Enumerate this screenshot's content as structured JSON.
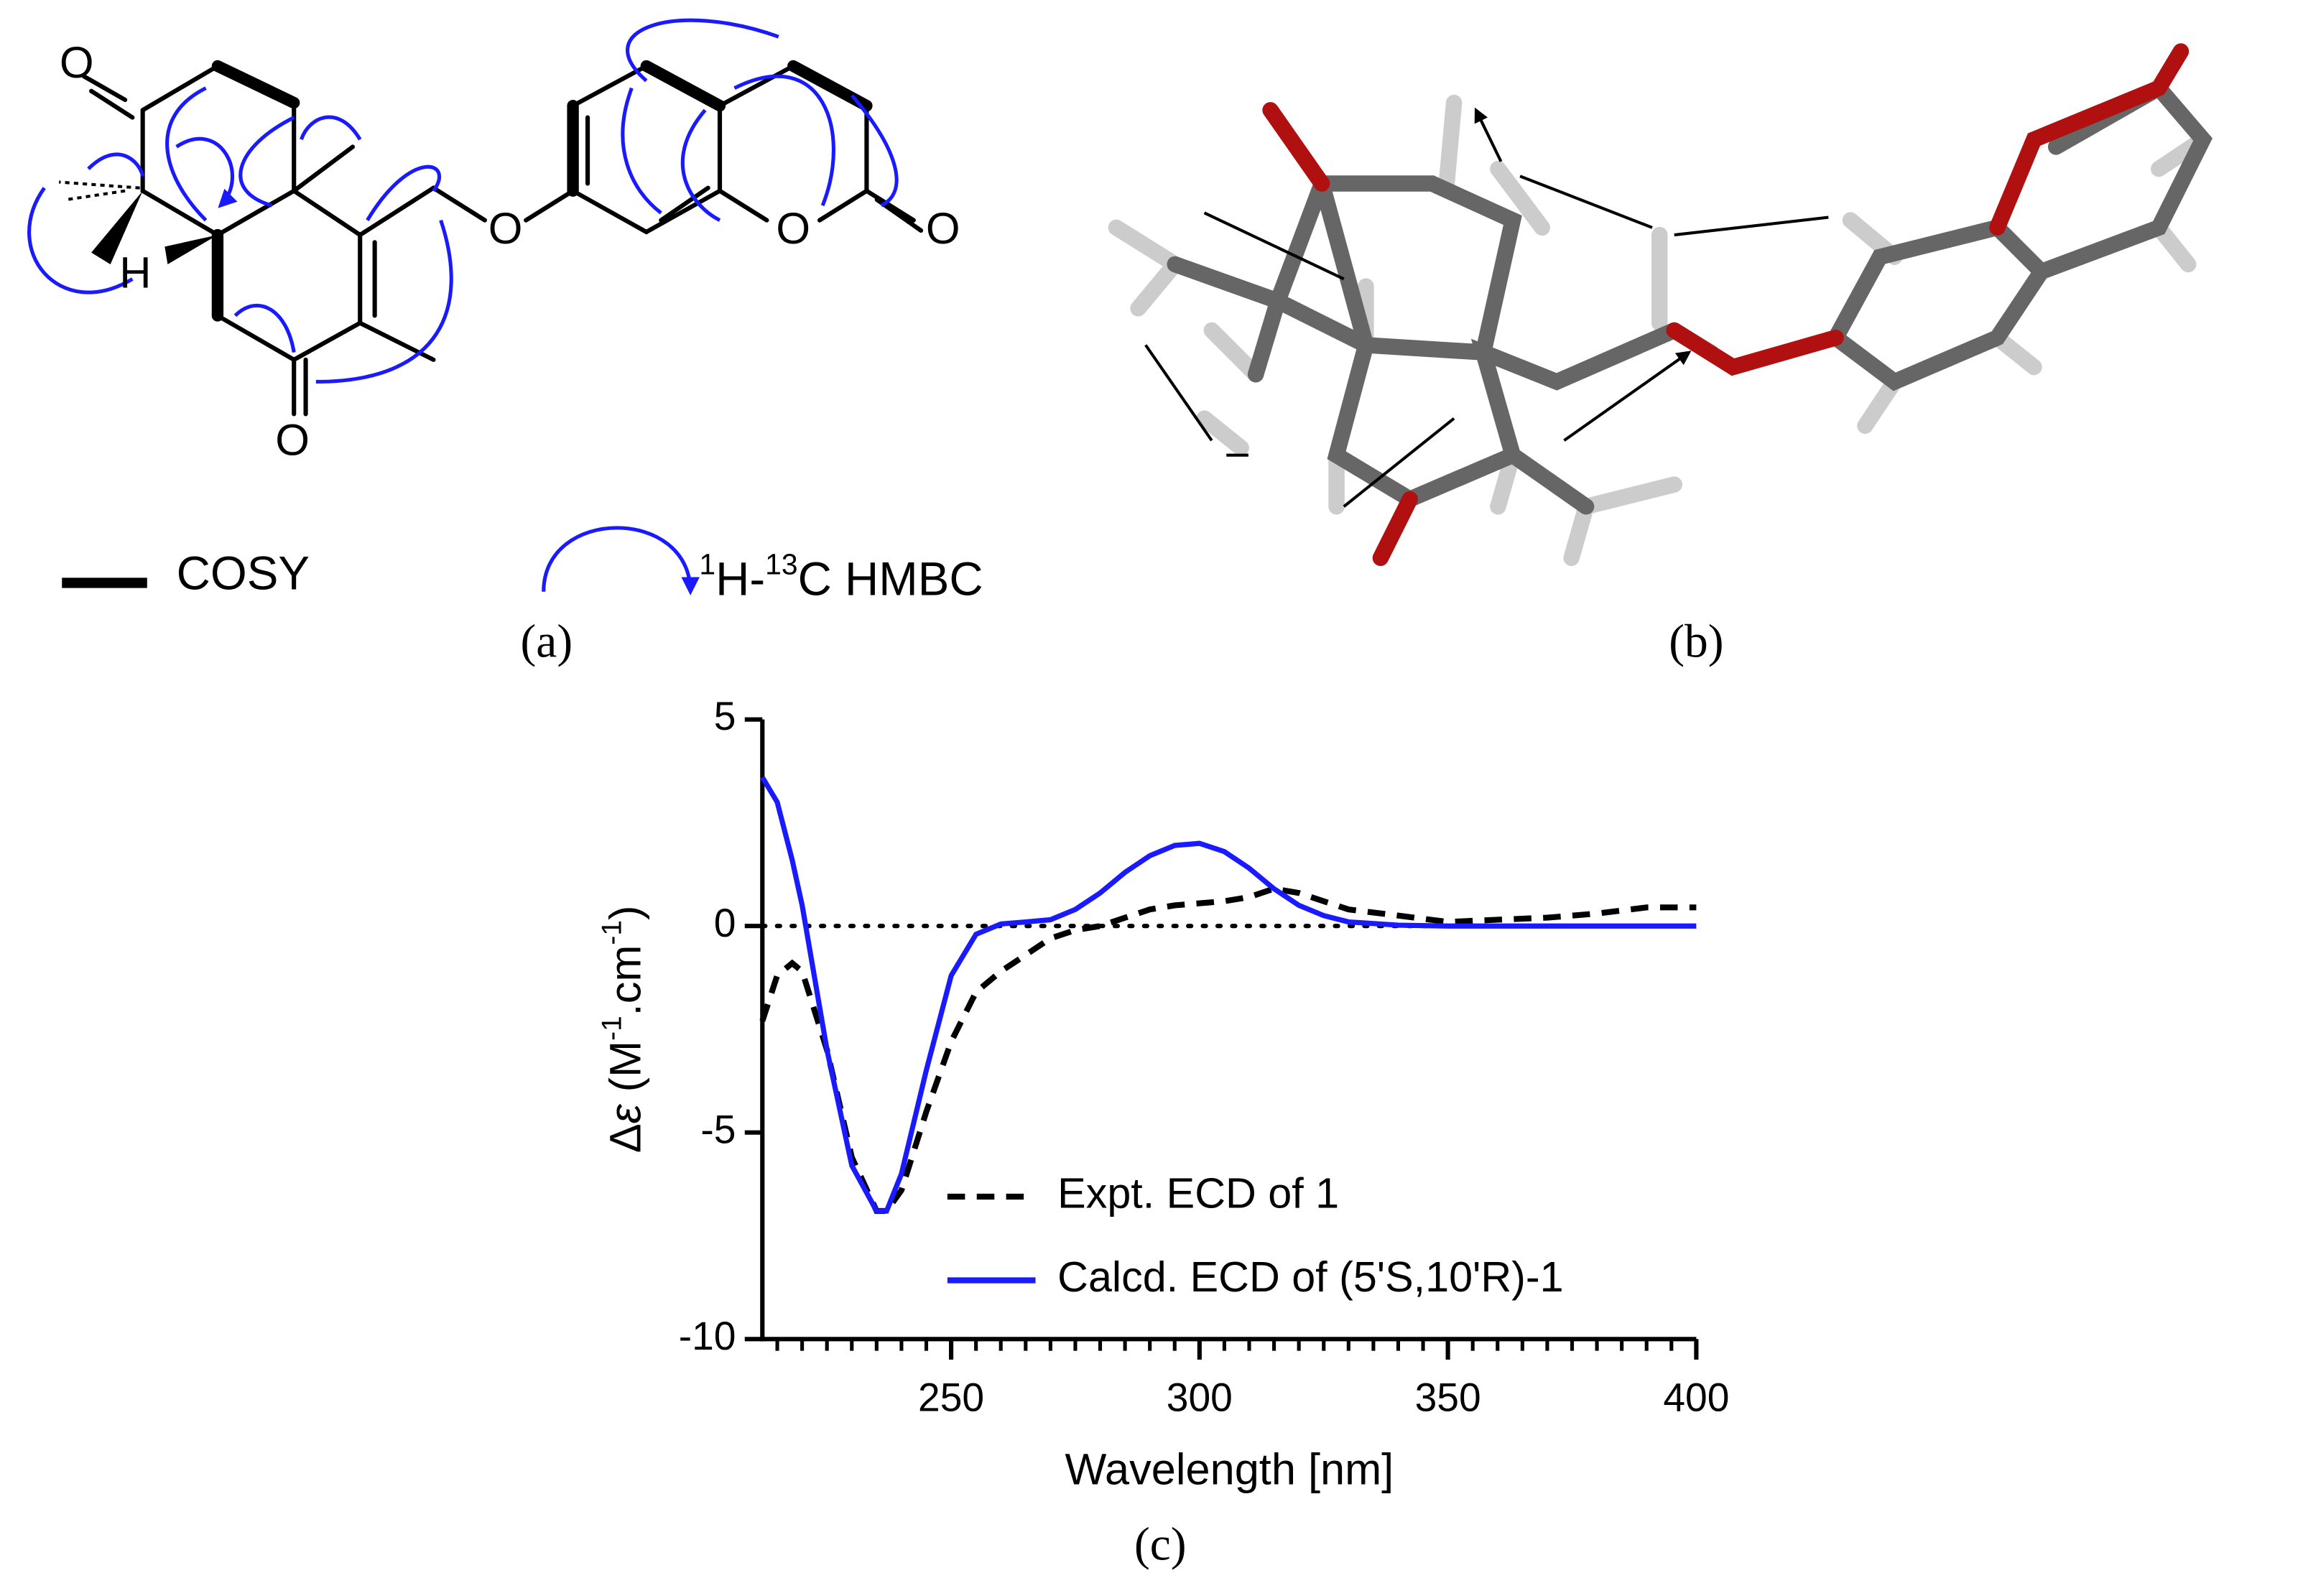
{
  "panel_a": {
    "atoms": [
      "O",
      "H",
      "O",
      "O",
      "O",
      "O"
    ],
    "legend_cosy": "COSY",
    "legend_hmbc": [
      "1",
      "H-",
      "13",
      "C HMBC"
    ],
    "label": "(a)"
  },
  "panel_b": {
    "label": "(b)"
  },
  "chart_data": {
    "type": "line",
    "label": "(c)",
    "xlabel": "Wavelength [nm]",
    "ylabel": [
      "Δ",
      "ε",
      " (M",
      "-1",
      ".cm",
      "-1",
      ")"
    ],
    "x": [
      212,
      215,
      218,
      220,
      225,
      230,
      235,
      237,
      240,
      245,
      250,
      255,
      260,
      265,
      270,
      275,
      280,
      285,
      290,
      295,
      300,
      305,
      310,
      315,
      320,
      325,
      330,
      340,
      350,
      360,
      370,
      380,
      390,
      400
    ],
    "series": [
      {
        "name": "Expt. ECD of 1",
        "color": "#000000",
        "line_style": "dashed",
        "values": [
          -2.3,
          -1.2,
          -0.9,
          -1.1,
          -3.0,
          -5.6,
          -6.9,
          -6.9,
          -6.4,
          -4.5,
          -2.8,
          -1.6,
          -1.1,
          -0.7,
          -0.3,
          -0.1,
          0.0,
          0.2,
          0.4,
          0.5,
          0.55,
          0.6,
          0.7,
          0.9,
          0.8,
          0.6,
          0.4,
          0.25,
          0.1,
          0.15,
          0.2,
          0.3,
          0.45,
          0.45
        ]
      },
      {
        "name": "Calcd. ECD of (5'S,10'R)-1",
        "color": "#1a1aff",
        "line_style": "solid",
        "values": [
          3.6,
          3.0,
          1.6,
          0.5,
          -3.0,
          -5.8,
          -6.9,
          -6.9,
          -6.0,
          -3.5,
          -1.2,
          -0.2,
          0.05,
          0.1,
          0.15,
          0.4,
          0.8,
          1.3,
          1.7,
          1.95,
          2.0,
          1.8,
          1.4,
          0.9,
          0.5,
          0.25,
          0.1,
          0.02,
          0,
          0,
          0,
          0,
          0,
          0
        ]
      }
    ],
    "xlim": [
      212,
      400
    ],
    "ylim": [
      -10,
      5
    ],
    "xticks": [
      250,
      300,
      350,
      400
    ],
    "yticks": [
      -10,
      -5,
      0,
      5
    ],
    "xminorticks": [
      215,
      220,
      225,
      230,
      235,
      240,
      245,
      255,
      260,
      265,
      270,
      275,
      280,
      285,
      290,
      295,
      305,
      310,
      315,
      320,
      325,
      330,
      335,
      340,
      345,
      355,
      360,
      365,
      370,
      375,
      380,
      385,
      390,
      395
    ],
    "zero_line": true
  }
}
